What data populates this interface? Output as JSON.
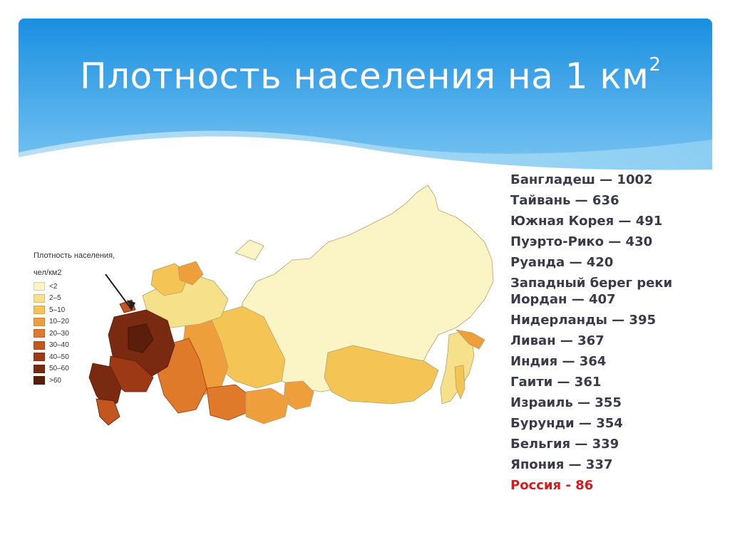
{
  "slide": {
    "title": "Плотность населения на 1 км",
    "title_superscript": "2"
  },
  "legend": {
    "title_line1": "Плотность населения,",
    "title_line2": "чел/км2",
    "items": [
      {
        "label": "<2",
        "color": "#fbf4c4"
      },
      {
        "label": "2–5",
        "color": "#f7e08a"
      },
      {
        "label": "5–10",
        "color": "#f4c455"
      },
      {
        "label": "10–20",
        "color": "#ee9f3b"
      },
      {
        "label": "20–30",
        "color": "#df7a2b"
      },
      {
        "label": "30–40",
        "color": "#c3561f"
      },
      {
        "label": "40–50",
        "color": "#9d3915"
      },
      {
        "label": "50–60",
        "color": "#7a2a10"
      },
      {
        "label": ">60",
        "color": "#5b1e0b"
      }
    ]
  },
  "countries": [
    {
      "text": "Бангладеш — 1002"
    },
    {
      "text": "Тайвань — 636"
    },
    {
      "text": "Южная Корея — 491"
    },
    {
      "text": "Пуэрто-Рико — 430"
    },
    {
      "text": "Руанда — 420"
    },
    {
      "text": "Западный берег реки Иордан — 407"
    },
    {
      "text": "Нидерланды — 395"
    },
    {
      "text": "Ливан — 367"
    },
    {
      "text": "Индия — 364"
    },
    {
      "text": "Гаити — 361"
    },
    {
      "text": "Израиль — 355"
    },
    {
      "text": "Бурунди — 354"
    },
    {
      "text": "Бельгия — 339"
    },
    {
      "text": "Япония — 337"
    },
    {
      "text": "Россия - 86",
      "highlight": true
    }
  ],
  "colors": {
    "banner_top": "#1a8fe0",
    "banner_bottom": "#7cc6f2",
    "highlight": "#d61c1c"
  }
}
